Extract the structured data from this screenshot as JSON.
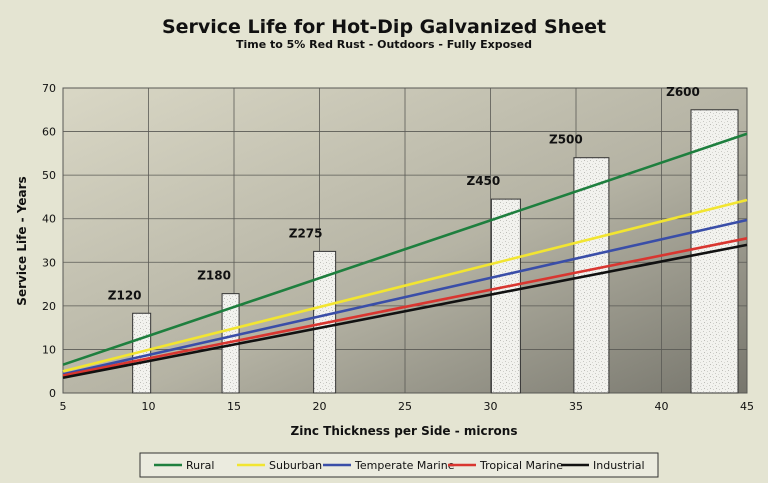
{
  "chart_data": {
    "type": "line",
    "title": "Service Life for Hot-Dip Galvanized Sheet",
    "subtitle": "Time to 5% Red Rust - Outdoors - Fully Exposed",
    "xlabel": "Zinc Thickness per Side - microns",
    "ylabel": "Service Life - Years",
    "xlim": [
      5,
      45
    ],
    "ylim": [
      0,
      70
    ],
    "x_ticks": [
      5,
      10,
      15,
      20,
      25,
      30,
      35,
      40,
      45
    ],
    "y_ticks": [
      0,
      10,
      20,
      30,
      40,
      50,
      60,
      70
    ],
    "grid": true,
    "legend_position": "bottom",
    "series": [
      {
        "name": "Rural",
        "color": "#1e7f3e",
        "x": [
          5,
          45
        ],
        "y": [
          6.5,
          59.5
        ]
      },
      {
        "name": "Suburban",
        "color": "#f2e531",
        "x": [
          5,
          45
        ],
        "y": [
          5.0,
          44.3
        ]
      },
      {
        "name": "Temperate Marine",
        "color": "#3a4ea8",
        "x": [
          5,
          45
        ],
        "y": [
          4.3,
          39.7
        ]
      },
      {
        "name": "Tropical Marine",
        "color": "#d93630",
        "x": [
          5,
          45
        ],
        "y": [
          4.0,
          35.5
        ]
      },
      {
        "name": "Industrial",
        "color": "#111111",
        "x": [
          5,
          45
        ],
        "y": [
          3.5,
          34.0
        ]
      }
    ],
    "bars": [
      {
        "label": "Z120",
        "x": 9.6,
        "value": 18.3
      },
      {
        "label": "Z180",
        "x": 14.8,
        "value": 22.8
      },
      {
        "label": "Z275",
        "x": 20.3,
        "value": 32.5
      },
      {
        "label": "Z450",
        "x": 30.9,
        "value": 44.5
      },
      {
        "label": "Z500",
        "x": 35.9,
        "value": 54.0
      },
      {
        "label": "Z600",
        "x": 43.1,
        "value": 65.0
      }
    ]
  }
}
